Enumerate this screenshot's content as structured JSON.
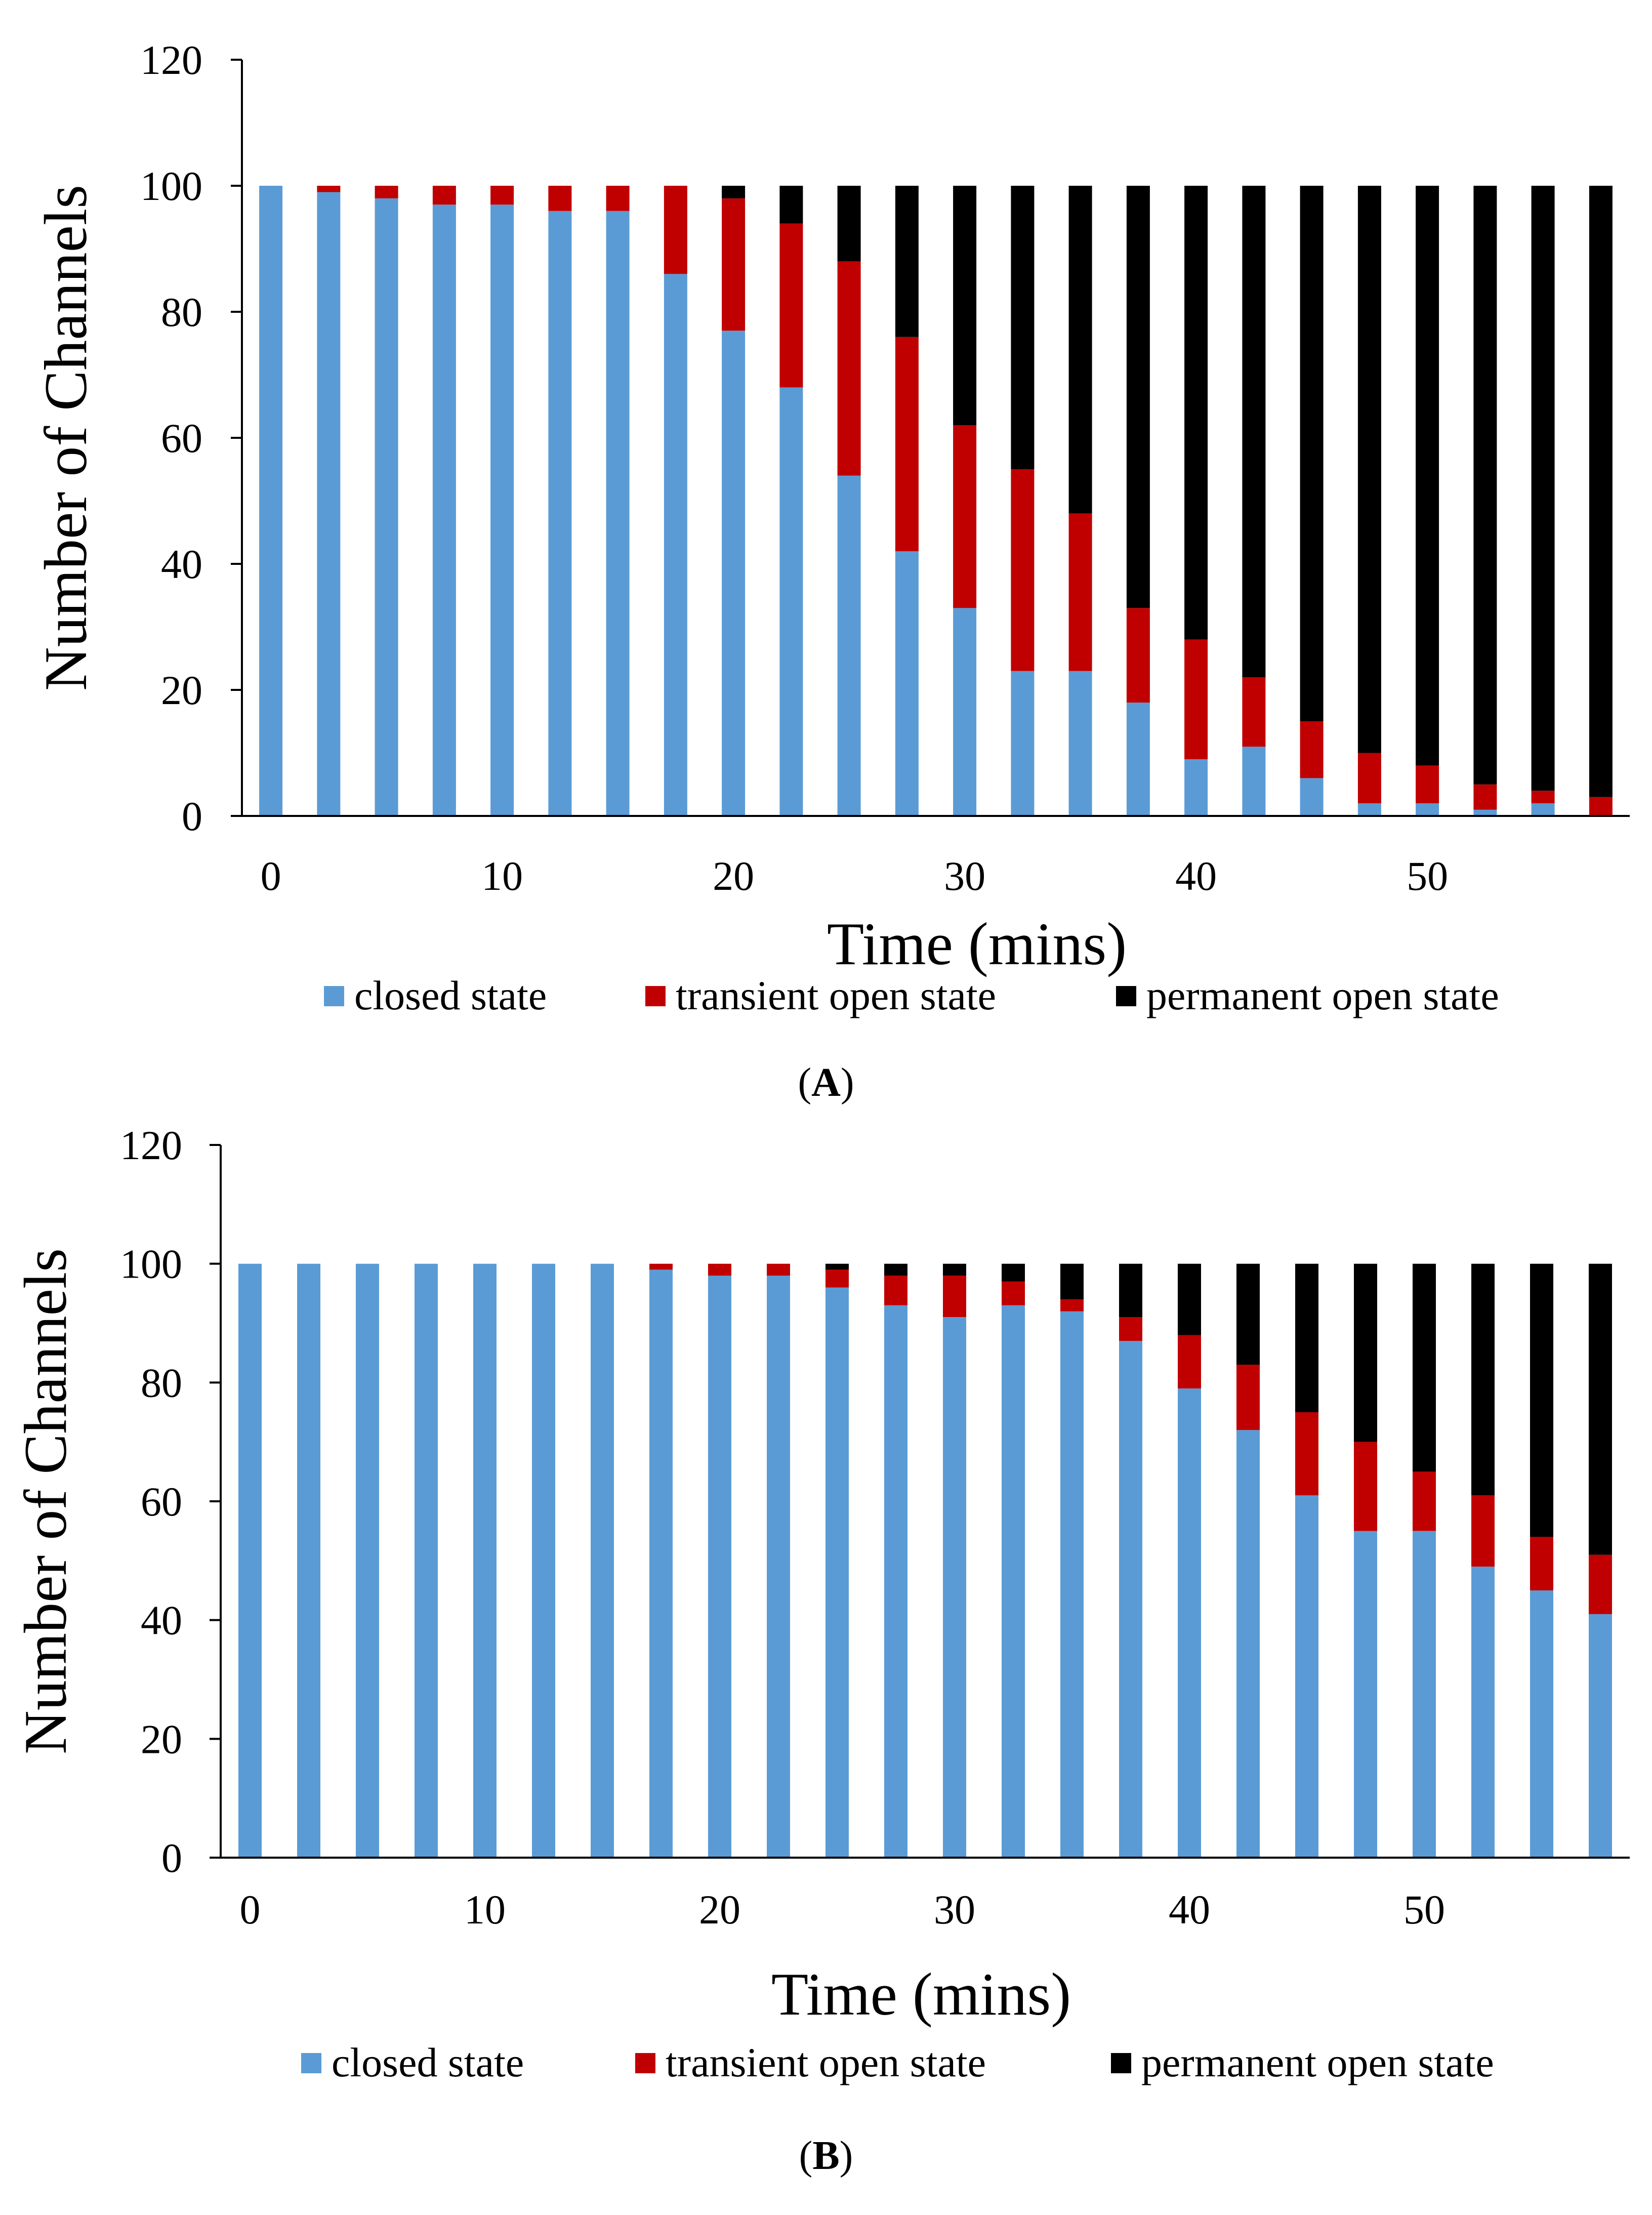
{
  "colors": {
    "closed": "#5b9bd5",
    "transient": "#c00000",
    "permanent": "#000000",
    "axis": "#000000",
    "background": "#ffffff"
  },
  "chart_data": [
    {
      "panel": "A",
      "panel_label_open": "(",
      "panel_label_letter": "A",
      "panel_label_close": ")",
      "type": "bar",
      "stacked": true,
      "xlabel": "Time (mins)",
      "ylabel": "Number of Channels",
      "ylim": [
        0,
        120
      ],
      "yticks": [
        0,
        20,
        40,
        60,
        80,
        100,
        120
      ],
      "xlim": [
        -1.25,
        58.75
      ],
      "xticks": [
        0,
        10,
        20,
        30,
        40,
        50
      ],
      "legend_position": "bottom",
      "x": [
        0,
        2.5,
        5,
        7.5,
        10,
        12.5,
        15,
        17.5,
        20,
        22.5,
        25,
        27.5,
        30,
        32.5,
        35,
        37.5,
        40,
        42.5,
        45,
        47.5,
        50,
        52.5,
        55,
        57.5
      ],
      "series": [
        {
          "key": "closed",
          "name": "closed state",
          "values": [
            100,
            99,
            98,
            97,
            97,
            96,
            96,
            86,
            77,
            68,
            54,
            42,
            33,
            23,
            23,
            18,
            9,
            11,
            6,
            2,
            2,
            1,
            2,
            0
          ]
        },
        {
          "key": "transient",
          "name": "transient open state",
          "values": [
            0,
            1,
            2,
            3,
            3,
            4,
            4,
            14,
            21,
            26,
            34,
            34,
            29,
            32,
            25,
            15,
            19,
            11,
            9,
            8,
            6,
            4,
            2,
            3
          ]
        },
        {
          "key": "permanent",
          "name": "permanent open state",
          "values": [
            0,
            0,
            0,
            0,
            0,
            0,
            0,
            0,
            2,
            6,
            12,
            24,
            38,
            45,
            52,
            67,
            72,
            78,
            85,
            90,
            92,
            95,
            96,
            97
          ]
        }
      ]
    },
    {
      "panel": "B",
      "panel_label_open": "(",
      "panel_label_letter": "B",
      "panel_label_close": ")",
      "type": "bar",
      "stacked": true,
      "xlabel": "Time (mins)",
      "ylabel": "Number of Channels",
      "ylim": [
        0,
        120
      ],
      "yticks": [
        0,
        20,
        40,
        60,
        80,
        100,
        120
      ],
      "xlim": [
        -1.25,
        58.75
      ],
      "xticks": [
        0,
        10,
        20,
        30,
        40,
        50
      ],
      "legend_position": "bottom",
      "x": [
        0,
        2.5,
        5,
        7.5,
        10,
        12.5,
        15,
        17.5,
        20,
        22.5,
        25,
        27.5,
        30,
        32.5,
        35,
        37.5,
        40,
        42.5,
        45,
        47.5,
        50,
        52.5,
        55,
        57.5
      ],
      "series": [
        {
          "key": "closed",
          "name": "closed state",
          "values": [
            100,
            100,
            100,
            100,
            100,
            100,
            100,
            99,
            98,
            98,
            96,
            93,
            91,
            93,
            92,
            87,
            79,
            72,
            61,
            55,
            55,
            49,
            45,
            41
          ]
        },
        {
          "key": "transient",
          "name": "transient open state",
          "values": [
            0,
            0,
            0,
            0,
            0,
            0,
            0,
            1,
            2,
            2,
            3,
            5,
            7,
            4,
            2,
            4,
            9,
            11,
            14,
            15,
            10,
            12,
            9,
            10
          ]
        },
        {
          "key": "permanent",
          "name": "permanent open state",
          "values": [
            0,
            0,
            0,
            0,
            0,
            0,
            0,
            0,
            0,
            0,
            1,
            2,
            2,
            3,
            6,
            9,
            12,
            17,
            25,
            30,
            35,
            39,
            46,
            49
          ]
        }
      ]
    }
  ]
}
